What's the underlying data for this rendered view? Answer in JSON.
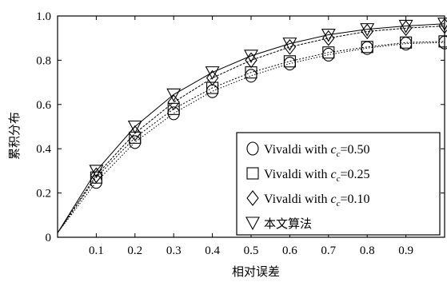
{
  "chart_data": {
    "type": "line",
    "title": "",
    "xlabel": "相对误差",
    "ylabel": "累积分布",
    "xlim": [
      0,
      1.0
    ],
    "ylim": [
      0,
      1.0
    ],
    "x_ticks": [
      "0.1",
      "0.2",
      "0.3",
      "0.4",
      "0.5",
      "0.6",
      "0.7",
      "0.8",
      "0.9"
    ],
    "y_ticks": [
      "0",
      "0.2",
      "0.4",
      "0.6",
      "0.8",
      "1.0"
    ],
    "x": [
      0.1,
      0.2,
      0.3,
      0.4,
      0.5,
      0.6,
      0.7,
      0.8,
      0.9,
      1.0
    ],
    "series": [
      {
        "name": "Vivaldi with cc=0.50",
        "name_parts": [
          "Vivaldi with ",
          "c",
          "c",
          "=0.50"
        ],
        "marker": "circle",
        "values": [
          0.25,
          0.43,
          0.56,
          0.66,
          0.73,
          0.785,
          0.825,
          0.855,
          0.875,
          0.88
        ]
      },
      {
        "name": "Vivaldi with cc=0.25",
        "name_parts": [
          "Vivaldi with ",
          "c",
          "c",
          "=0.25"
        ],
        "marker": "square",
        "values": [
          0.27,
          0.45,
          0.58,
          0.675,
          0.745,
          0.795,
          0.835,
          0.86,
          0.88,
          0.885
        ]
      },
      {
        "name": "Vivaldi with cc=0.10",
        "name_parts": [
          "Vivaldi with ",
          "c",
          "c",
          "=0.10"
        ],
        "marker": "diamond",
        "values": [
          0.28,
          0.47,
          0.61,
          0.72,
          0.8,
          0.86,
          0.9,
          0.93,
          0.945,
          0.955
        ]
      },
      {
        "name": "本文算法",
        "marker": "triangle-down",
        "values": [
          0.3,
          0.5,
          0.645,
          0.745,
          0.82,
          0.875,
          0.915,
          0.94,
          0.955,
          0.965
        ]
      }
    ],
    "legend_position": "bottom-right",
    "grid": false,
    "colors": {
      "line": "#000000",
      "background": "#ffffff"
    }
  }
}
